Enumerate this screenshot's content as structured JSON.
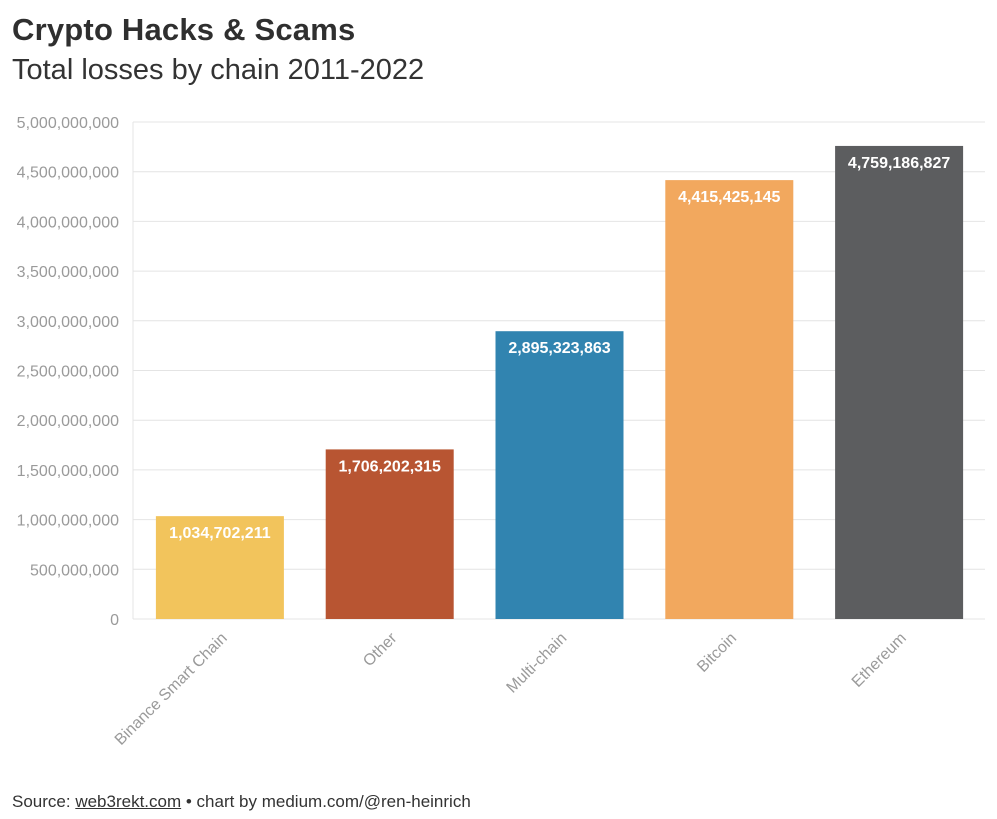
{
  "header": {
    "title": "Crypto Hacks & Scams",
    "subtitle": "Total losses by chain 2011-2022"
  },
  "chart_data": {
    "type": "bar",
    "title": "Crypto Hacks & Scams",
    "subtitle": "Total losses by chain 2011-2022",
    "xlabel": "",
    "ylabel": "",
    "categories": [
      "Binance Smart Chain",
      "Other",
      "Multi-chain",
      "Bitcoin",
      "Ethereum"
    ],
    "values": [
      1034702211,
      1706202315,
      2895323863,
      4415425145,
      4759186827
    ],
    "value_labels": [
      "1,034,702,211",
      "1,706,202,315",
      "2,895,323,863",
      "4,415,425,145",
      "4,759,186,827"
    ],
    "colors": [
      "#f2c45c",
      "#b85532",
      "#3184b0",
      "#f2a85e",
      "#5c5d5f"
    ],
    "ylim": [
      0,
      5000000000
    ],
    "yticks": [
      0,
      500000000,
      1000000000,
      1500000000,
      2000000000,
      2500000000,
      3000000000,
      3500000000,
      4000000000,
      4500000000,
      5000000000
    ],
    "ytick_labels": [
      "0",
      "500,000,000",
      "1,000,000,000",
      "1,500,000,000",
      "2,000,000,000",
      "2,500,000,000",
      "3,000,000,000",
      "3,500,000,000",
      "4,000,000,000",
      "4,500,000,000",
      "5,000,000,000"
    ],
    "grid": true,
    "legend": "none"
  },
  "footer": {
    "source_prefix": "Source: ",
    "source_link": "web3rekt.com",
    "credit": " • chart by medium.com/@ren-heinrich"
  }
}
